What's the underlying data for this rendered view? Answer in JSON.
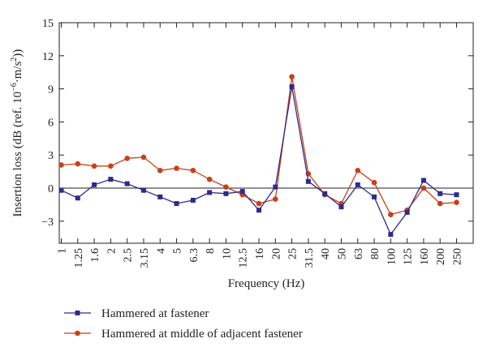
{
  "chart_data": {
    "type": "line",
    "title": "",
    "xlabel": "Frequency (Hz)",
    "ylabel": {
      "main": "Insertion loss (dB (ref. 10",
      "exp1": "−6",
      "mid": "·m/s",
      "exp2": "2",
      "end": "))"
    },
    "categories": [
      "1",
      "1.25",
      "1.6",
      "2",
      "2.5",
      "3.15",
      "4",
      "5",
      "6.3",
      "8",
      "10",
      "12.5",
      "16",
      "20",
      "25",
      "31.5",
      "40",
      "50",
      "63",
      "80",
      "100",
      "125",
      "160",
      "200",
      "250"
    ],
    "ylim": [
      -5,
      15
    ],
    "yticks": [
      -3,
      0,
      3,
      6,
      9,
      12,
      15
    ],
    "ytick_labels": [
      "−3",
      "0",
      "3",
      "6",
      "9",
      "12",
      "15"
    ],
    "grid": false,
    "legend_position": "bottom",
    "series": [
      {
        "name": "Hammered at fastener",
        "color": "#2e2a8c",
        "marker": "square",
        "values": [
          -0.2,
          -0.9,
          0.3,
          0.8,
          0.4,
          -0.2,
          -0.8,
          -1.4,
          -1.1,
          -0.4,
          -0.5,
          -0.3,
          -2.0,
          0.1,
          9.2,
          0.6,
          -0.5,
          -1.7,
          0.3,
          -0.8,
          -4.2,
          -2.2,
          0.7,
          -0.5,
          -0.6
        ]
      },
      {
        "name": "Hammered at middle of adjacent fastener",
        "color": "#c8401a",
        "marker": "circle",
        "values": [
          2.1,
          2.2,
          2.0,
          2.0,
          2.7,
          2.8,
          1.6,
          1.8,
          1.6,
          0.8,
          0.1,
          -0.6,
          -1.4,
          -1.0,
          10.1,
          1.3,
          -0.6,
          -1.4,
          1.6,
          0.5,
          -2.4,
          -2.0,
          0.0,
          -1.4,
          -1.3
        ]
      }
    ]
  }
}
